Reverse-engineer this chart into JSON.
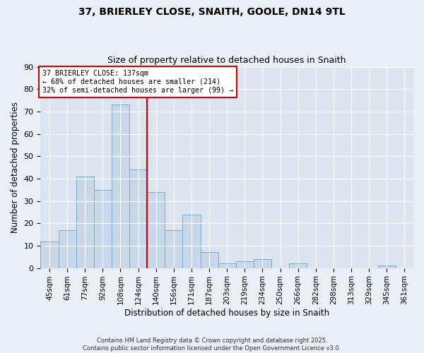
{
  "title_line1": "37, BRIERLEY CLOSE, SNAITH, GOOLE, DN14 9TL",
  "title_line2": "Size of property relative to detached houses in Snaith",
  "xlabel": "Distribution of detached houses by size in Snaith",
  "ylabel": "Number of detached properties",
  "bar_labels": [
    "45sqm",
    "61sqm",
    "77sqm",
    "92sqm",
    "108sqm",
    "124sqm",
    "140sqm",
    "156sqm",
    "171sqm",
    "187sqm",
    "203sqm",
    "219sqm",
    "234sqm",
    "250sqm",
    "266sqm",
    "282sqm",
    "298sqm",
    "313sqm",
    "329sqm",
    "345sqm",
    "361sqm"
  ],
  "bar_values": [
    12,
    17,
    41,
    35,
    73,
    44,
    34,
    17,
    24,
    7,
    2,
    3,
    4,
    0,
    2,
    0,
    0,
    0,
    0,
    1,
    0
  ],
  "bar_color": "#c8d8ea",
  "bar_edge_color": "#7aaac8",
  "vline_x": 6.0,
  "vline_color": "#cc0000",
  "annotation_title": "37 BRIERLEY CLOSE: 137sqm",
  "annotation_line2": "← 68% of detached houses are smaller (214)",
  "annotation_line3": "32% of semi-detached houses are larger (99) →",
  "annotation_box_color": "#cc0000",
  "ylim": [
    0,
    90
  ],
  "yticks": [
    0,
    10,
    20,
    30,
    40,
    50,
    60,
    70,
    80,
    90
  ],
  "background_color": "#eaeef5",
  "plot_bg_color": "#dce4f0",
  "footer_line1": "Contains HM Land Registry data © Crown copyright and database right 2025.",
  "footer_line2": "Contains public sector information licensed under the Open Government Licence v3.0."
}
